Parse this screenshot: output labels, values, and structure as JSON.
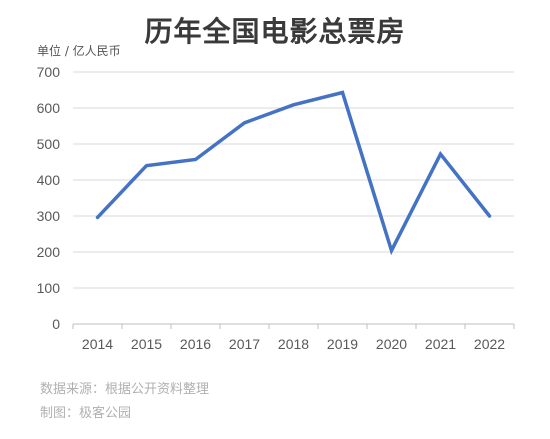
{
  "chart_data": {
    "type": "line",
    "title": "历年全国电影总票房",
    "ylabel": "单位 / 亿人民币",
    "xlabel": "",
    "ylim": [
      0,
      700
    ],
    "yticks": [
      "0",
      "100",
      "200",
      "300",
      "400",
      "500",
      "600",
      "700"
    ],
    "x": [
      "2014",
      "2015",
      "2016",
      "2017",
      "2018",
      "2019",
      "2020",
      "2021",
      "2022"
    ],
    "series": [
      {
        "values": [
          296,
          440,
          457,
          559,
          609,
          643,
          204,
          472,
          300
        ]
      }
    ],
    "grid": true,
    "legend": "none"
  },
  "colors": {
    "line": "#4472c4",
    "grid": "#d9d9d9",
    "axis_text": "#595959"
  },
  "footer": {
    "source": "数据来源：根据公开资料整理",
    "maker": "制图：极客公园"
  }
}
